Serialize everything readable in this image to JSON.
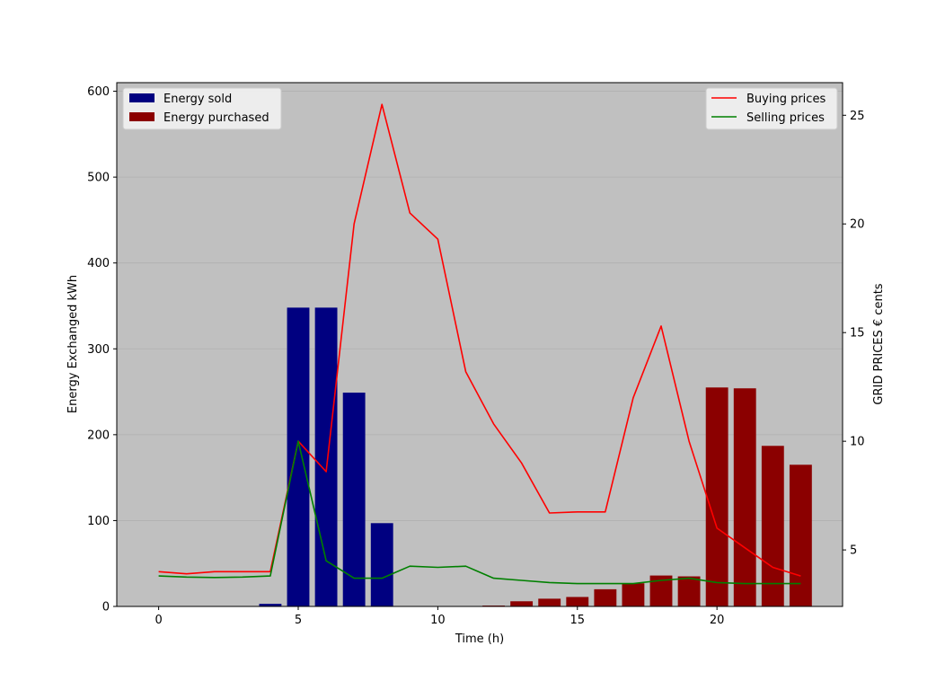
{
  "chart_data": {
    "type": "bar",
    "xlabel": "Time (h)",
    "ylabel": "Energy Exchanged kWh",
    "y2label": "GRID PRICES € cents",
    "xlim": [
      -1.5,
      24.5
    ],
    "ylim": [
      0,
      610
    ],
    "y2lim": [
      2.4,
      26.5
    ],
    "x_ticks": [
      0,
      5,
      10,
      15,
      20
    ],
    "y_ticks": [
      0,
      100,
      200,
      300,
      400,
      500,
      600
    ],
    "y2_ticks": [
      5,
      10,
      15,
      20,
      25
    ],
    "grid": "horizontal",
    "background": "#c0c0c0",
    "bar_legend_placement": "top-left",
    "line_legend_placement": "top-right",
    "hours": [
      0,
      1,
      2,
      3,
      4,
      5,
      6,
      7,
      8,
      9,
      10,
      11,
      12,
      13,
      14,
      15,
      16,
      17,
      18,
      19,
      20,
      21,
      22,
      23
    ],
    "bar_series": [
      {
        "name": "Energy sold",
        "color": "#000080",
        "values": [
          0,
          0,
          0,
          0,
          3,
          348,
          348,
          249,
          97,
          0,
          0,
          0,
          0,
          0,
          0,
          0,
          0,
          0,
          0,
          0,
          0,
          0,
          0,
          0
        ]
      },
      {
        "name": "Energy purchased",
        "color": "#8b0000",
        "values": [
          0,
          0,
          0,
          0,
          0,
          0,
          0,
          0,
          0,
          0,
          0,
          0,
          1,
          6,
          9,
          11,
          20,
          27,
          36,
          35,
          255,
          254,
          187,
          165
        ]
      }
    ],
    "line_series": [
      {
        "name": "Buying prices",
        "color": "#ff0000",
        "axis": "right",
        "values": [
          4.0,
          3.9,
          4.0,
          4.0,
          4.0,
          10.0,
          8.6,
          20.0,
          25.5,
          20.5,
          19.3,
          13.2,
          10.8,
          9.0,
          6.7,
          6.75,
          6.75,
          12.0,
          15.3,
          10.0,
          6.0,
          5.1,
          4.2,
          3.8
        ]
      },
      {
        "name": "Selling prices",
        "color": "#008000",
        "axis": "right",
        "values": [
          3.8,
          3.75,
          3.73,
          3.75,
          3.8,
          10.0,
          4.5,
          3.7,
          3.7,
          4.25,
          4.2,
          4.25,
          3.7,
          3.6,
          3.5,
          3.45,
          3.45,
          3.45,
          3.6,
          3.7,
          3.5,
          3.45,
          3.45,
          3.45
        ]
      }
    ]
  }
}
